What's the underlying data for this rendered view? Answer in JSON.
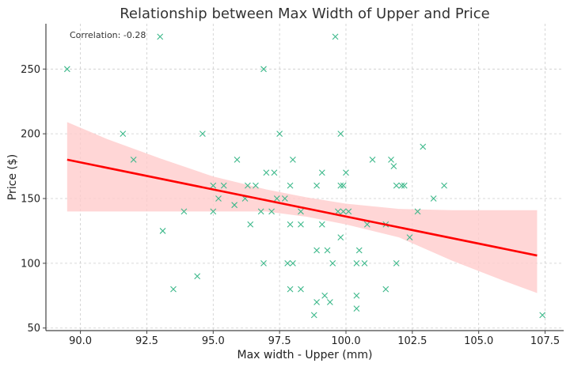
{
  "chart_data": {
    "type": "scatter",
    "title": "Relationship between Max Width of Upper and Price",
    "xlabel": "Max width - Upper (mm)",
    "ylabel": "Price ($)",
    "annotation": "Correlation: -0.28",
    "xlim": [
      88.7,
      108.2
    ],
    "ylim": [
      48,
      285
    ],
    "xticks": [
      90.0,
      92.5,
      95.0,
      97.5,
      100.0,
      102.5,
      105.0,
      107.5
    ],
    "xtick_labels": [
      "90.0",
      "92.5",
      "95.0",
      "97.5",
      "100.0",
      "102.5",
      "105.0",
      "107.5"
    ],
    "yticks": [
      50,
      100,
      150,
      200,
      250
    ],
    "ytick_labels": [
      "50",
      "100",
      "150",
      "200",
      "250"
    ],
    "grid": true,
    "colors": {
      "points": "#3cb88a",
      "regression": "#ff0000",
      "band": "#ffcccc"
    },
    "regression": {
      "x": [
        89.5,
        107.2
      ],
      "y": [
        180,
        106
      ]
    },
    "confidence_band": {
      "x": [
        89.5,
        91.0,
        93.0,
        95.0,
        97.0,
        98.5,
        100.0,
        102.0,
        104.0,
        106.0,
        107.2
      ],
      "upper": [
        209,
        196,
        181,
        167,
        157,
        151,
        146,
        142,
        141,
        141,
        141
      ],
      "lower": [
        140,
        140,
        140,
        140,
        140,
        136,
        130,
        120,
        102,
        86,
        77
      ]
    },
    "points": [
      {
        "x": 89.5,
        "y": 250
      },
      {
        "x": 91.6,
        "y": 200
      },
      {
        "x": 92.0,
        "y": 180
      },
      {
        "x": 93.0,
        "y": 275
      },
      {
        "x": 93.1,
        "y": 125
      },
      {
        "x": 93.5,
        "y": 80
      },
      {
        "x": 93.9,
        "y": 140
      },
      {
        "x": 94.4,
        "y": 90
      },
      {
        "x": 94.6,
        "y": 200
      },
      {
        "x": 95.0,
        "y": 160
      },
      {
        "x": 95.0,
        "y": 140
      },
      {
        "x": 95.2,
        "y": 150
      },
      {
        "x": 95.4,
        "y": 160
      },
      {
        "x": 95.8,
        "y": 145
      },
      {
        "x": 95.9,
        "y": 180
      },
      {
        "x": 96.2,
        "y": 150
      },
      {
        "x": 96.3,
        "y": 160
      },
      {
        "x": 96.4,
        "y": 130
      },
      {
        "x": 96.6,
        "y": 160
      },
      {
        "x": 96.8,
        "y": 140
      },
      {
        "x": 96.9,
        "y": 250
      },
      {
        "x": 96.9,
        "y": 100
      },
      {
        "x": 97.0,
        "y": 170
      },
      {
        "x": 97.2,
        "y": 140
      },
      {
        "x": 97.3,
        "y": 170
      },
      {
        "x": 97.4,
        "y": 150
      },
      {
        "x": 97.5,
        "y": 200
      },
      {
        "x": 97.7,
        "y": 150
      },
      {
        "x": 97.8,
        "y": 100
      },
      {
        "x": 97.9,
        "y": 160
      },
      {
        "x": 97.9,
        "y": 130
      },
      {
        "x": 97.9,
        "y": 80
      },
      {
        "x": 98.0,
        "y": 180
      },
      {
        "x": 98.0,
        "y": 100
      },
      {
        "x": 98.3,
        "y": 140
      },
      {
        "x": 98.3,
        "y": 130
      },
      {
        "x": 98.3,
        "y": 80
      },
      {
        "x": 98.8,
        "y": 60
      },
      {
        "x": 98.9,
        "y": 160
      },
      {
        "x": 98.9,
        "y": 110
      },
      {
        "x": 98.9,
        "y": 70
      },
      {
        "x": 99.1,
        "y": 170
      },
      {
        "x": 99.1,
        "y": 130
      },
      {
        "x": 99.2,
        "y": 75
      },
      {
        "x": 99.3,
        "y": 110
      },
      {
        "x": 99.4,
        "y": 70
      },
      {
        "x": 99.5,
        "y": 100
      },
      {
        "x": 99.6,
        "y": 275
      },
      {
        "x": 99.7,
        "y": 140
      },
      {
        "x": 99.8,
        "y": 200
      },
      {
        "x": 99.8,
        "y": 160
      },
      {
        "x": 99.8,
        "y": 120
      },
      {
        "x": 99.9,
        "y": 160
      },
      {
        "x": 99.9,
        "y": 140
      },
      {
        "x": 100.0,
        "y": 170
      },
      {
        "x": 100.1,
        "y": 140
      },
      {
        "x": 100.4,
        "y": 100
      },
      {
        "x": 100.4,
        "y": 75
      },
      {
        "x": 100.4,
        "y": 65
      },
      {
        "x": 100.5,
        "y": 110
      },
      {
        "x": 100.7,
        "y": 100
      },
      {
        "x": 100.8,
        "y": 130
      },
      {
        "x": 101.0,
        "y": 180
      },
      {
        "x": 101.5,
        "y": 130
      },
      {
        "x": 101.5,
        "y": 80
      },
      {
        "x": 101.7,
        "y": 180
      },
      {
        "x": 101.8,
        "y": 175
      },
      {
        "x": 101.9,
        "y": 160
      },
      {
        "x": 101.9,
        "y": 100
      },
      {
        "x": 102.1,
        "y": 160
      },
      {
        "x": 102.2,
        "y": 160
      },
      {
        "x": 102.4,
        "y": 120
      },
      {
        "x": 102.7,
        "y": 140
      },
      {
        "x": 102.9,
        "y": 190
      },
      {
        "x": 103.3,
        "y": 150
      },
      {
        "x": 103.7,
        "y": 160
      },
      {
        "x": 107.4,
        "y": 60
      }
    ]
  }
}
